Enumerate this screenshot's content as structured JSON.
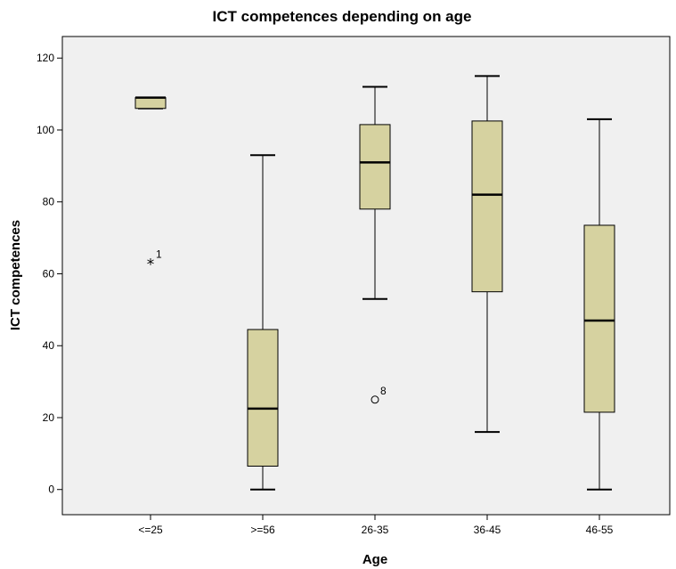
{
  "chart_data": {
    "type": "boxplot",
    "title": "ICT competences depending on age",
    "xlabel": "Age",
    "ylabel": "ICT competences",
    "ylim": [
      -7,
      126
    ],
    "yticks": [
      0,
      20,
      40,
      60,
      80,
      100,
      120
    ],
    "grid": false,
    "colors": {
      "plot_bg": "#f0f0f0",
      "box_fill": "#d6d2a0",
      "stroke": "#000000"
    },
    "categories": [
      "<=25",
      ">=56",
      "26-35",
      "36-45",
      "46-55"
    ],
    "boxes": [
      {
        "category": "<=25",
        "min": 106,
        "q1": 106,
        "median": 109,
        "q3": 109,
        "max": 109,
        "outliers": [
          {
            "value": 63,
            "label": "1",
            "marker": "star"
          }
        ]
      },
      {
        "category": ">=56",
        "min": 0,
        "q1": 6.5,
        "median": 22.5,
        "q3": 44.5,
        "max": 93,
        "outliers": []
      },
      {
        "category": "26-35",
        "min": 53,
        "q1": 78,
        "median": 91,
        "q3": 101.5,
        "max": 112,
        "outliers": [
          {
            "value": 25,
            "label": "8",
            "marker": "circle"
          }
        ]
      },
      {
        "category": "36-45",
        "min": 16,
        "q1": 55,
        "median": 82,
        "q3": 102.5,
        "max": 115,
        "outliers": []
      },
      {
        "category": "46-55",
        "min": 0,
        "q1": 21.5,
        "median": 47,
        "q3": 73.5,
        "max": 103,
        "outliers": []
      }
    ]
  }
}
